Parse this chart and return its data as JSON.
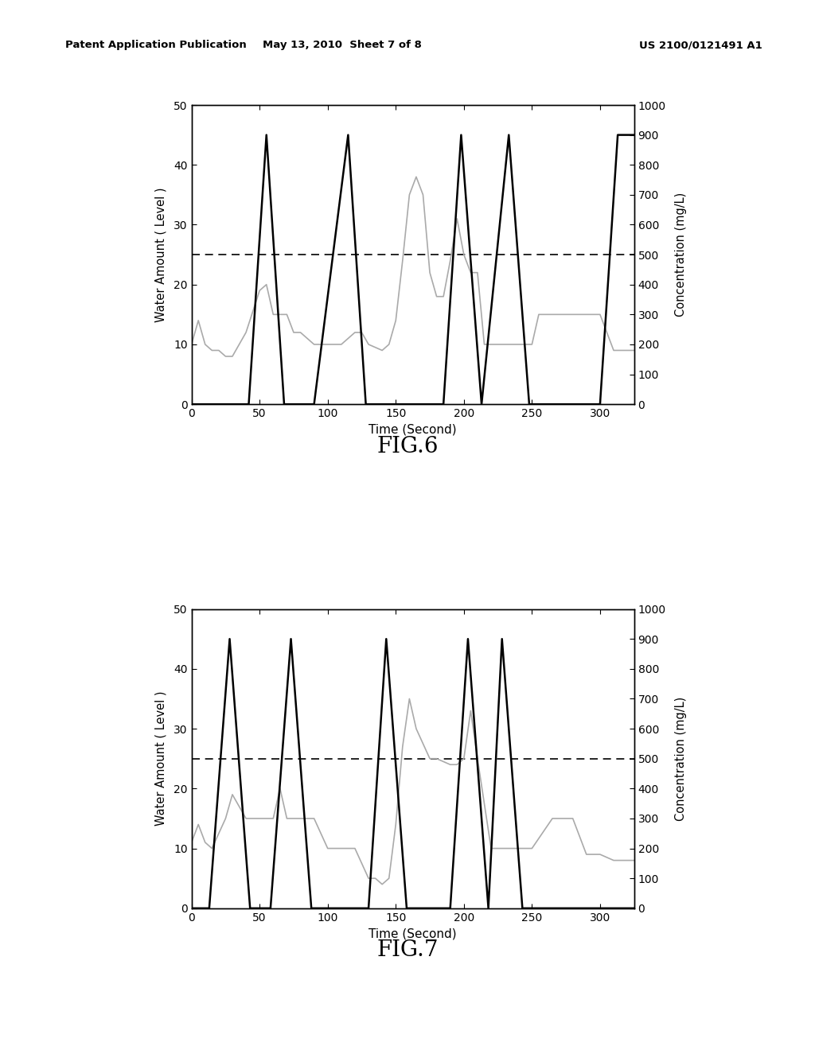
{
  "header_left": "Patent Application Publication",
  "header_center": "May 13, 2010  Sheet 7 of 8",
  "header_right": "US 2100/0121491 A1",
  "fig6_label": "FIG.6",
  "fig7_label": "FIG.7",
  "ylabel_left": "Water Amount ( Level )",
  "ylabel_right": "Concentration (mg/L)",
  "xlabel": "Time (Second)",
  "xlim": [
    0,
    325
  ],
  "ylim_left": [
    0,
    50
  ],
  "ylim_right": [
    0,
    1000
  ],
  "xticks": [
    0,
    50,
    100,
    150,
    200,
    250,
    300
  ],
  "yticks_left": [
    0,
    10,
    20,
    30,
    40,
    50
  ],
  "yticks_right": [
    0,
    100,
    200,
    300,
    400,
    500,
    600,
    700,
    800,
    900,
    1000
  ],
  "dashed_line_y": 25,
  "black_line_color": "#000000",
  "gray_line_color": "#aaaaaa",
  "background_color": "#ffffff",
  "fig6_black": {
    "x": [
      0,
      42,
      55,
      68,
      90,
      115,
      128,
      143,
      185,
      198,
      213,
      233,
      248,
      263,
      300,
      313,
      325
    ],
    "y": [
      0,
      0,
      45,
      0,
      0,
      45,
      0,
      0,
      0,
      45,
      0,
      45,
      0,
      0,
      0,
      45,
      45
    ]
  },
  "fig6_gray": {
    "x": [
      0,
      5,
      10,
      15,
      20,
      25,
      30,
      40,
      50,
      55,
      60,
      65,
      70,
      75,
      80,
      90,
      100,
      110,
      120,
      125,
      130,
      140,
      145,
      150,
      155,
      160,
      165,
      170,
      175,
      180,
      185,
      190,
      195,
      200,
      205,
      210,
      215,
      220,
      230,
      240,
      250,
      255,
      260,
      270,
      280,
      290,
      300,
      310,
      325
    ],
    "y": [
      10,
      14,
      10,
      9,
      9,
      8,
      8,
      12,
      19,
      20,
      15,
      15,
      15,
      12,
      12,
      10,
      10,
      10,
      12,
      12,
      10,
      9,
      10,
      14,
      24,
      35,
      38,
      35,
      22,
      18,
      18,
      24,
      31,
      25,
      22,
      22,
      10,
      10,
      10,
      10,
      10,
      15,
      15,
      15,
      15,
      15,
      15,
      9,
      9
    ]
  },
  "fig7_black": {
    "x": [
      0,
      13,
      28,
      43,
      58,
      73,
      88,
      130,
      143,
      158,
      190,
      203,
      218,
      228,
      243,
      258,
      325
    ],
    "y": [
      0,
      0,
      45,
      0,
      0,
      45,
      0,
      0,
      45,
      0,
      0,
      45,
      0,
      45,
      0,
      0,
      0
    ]
  },
  "fig7_gray": {
    "x": [
      0,
      5,
      10,
      15,
      25,
      30,
      40,
      50,
      60,
      65,
      70,
      75,
      80,
      90,
      100,
      120,
      130,
      135,
      140,
      145,
      150,
      155,
      160,
      165,
      175,
      180,
      190,
      195,
      200,
      205,
      210,
      220,
      225,
      235,
      245,
      250,
      265,
      280,
      290,
      300,
      310,
      325
    ],
    "y": [
      11,
      14,
      11,
      10,
      15,
      19,
      15,
      15,
      15,
      20,
      15,
      15,
      15,
      15,
      10,
      10,
      5,
      5,
      4,
      5,
      14,
      27,
      35,
      30,
      25,
      25,
      24,
      24,
      25,
      33,
      25,
      10,
      10,
      10,
      10,
      10,
      15,
      15,
      9,
      9,
      8,
      8
    ]
  }
}
